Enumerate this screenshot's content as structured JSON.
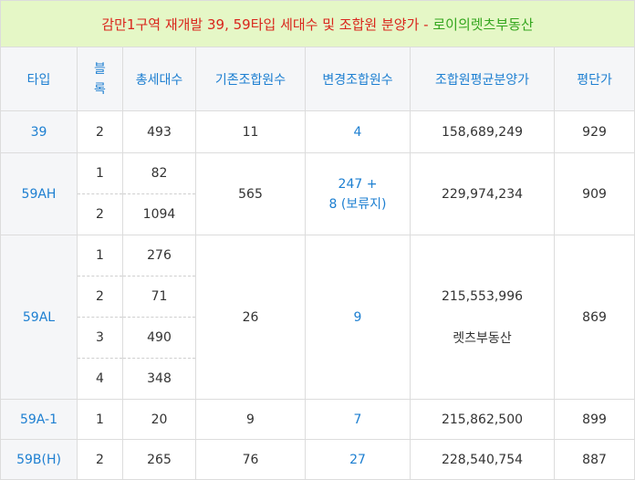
{
  "title": {
    "main": "감만1구역 재개발 39, 59타입 세대수 및 조합원 분양가",
    "separator": " - ",
    "source": "로이의렛츠부동산"
  },
  "columns": [
    "타입",
    "블록",
    "총세대수",
    "기존조합원수",
    "변경조합원수",
    "조합원평균분양가",
    "평단가"
  ],
  "column_block_lines": [
    "블",
    "록"
  ],
  "rows": {
    "t39": {
      "type": "39",
      "blocks": [
        {
          "block": "2",
          "households": "493"
        }
      ],
      "existing_members": "11",
      "changed_members": "4",
      "avg_price": "158,689,249",
      "unit_price": "929"
    },
    "t59ah": {
      "type": "59AH",
      "blocks": [
        {
          "block": "1",
          "households": "82"
        },
        {
          "block": "2",
          "households": "1094"
        }
      ],
      "existing_members": "565",
      "changed_members_line1": "247 +",
      "changed_members_line2": "8 (보류지)",
      "avg_price": "229,974,234",
      "unit_price": "909"
    },
    "t59al": {
      "type": "59AL",
      "blocks": [
        {
          "block": "1",
          "households": "276"
        },
        {
          "block": "2",
          "households": "71"
        },
        {
          "block": "3",
          "households": "490"
        },
        {
          "block": "4",
          "households": "348"
        }
      ],
      "existing_members": "26",
      "changed_members": "9",
      "avg_price": "215,553,996",
      "watermark": "렛츠부동산",
      "unit_price": "869"
    },
    "t59a1": {
      "type": "59A-1",
      "blocks": [
        {
          "block": "1",
          "households": "20"
        }
      ],
      "existing_members": "9",
      "changed_members": "7",
      "avg_price": "215,862,500",
      "unit_price": "899"
    },
    "t59bh": {
      "type": "59B(H)",
      "blocks": [
        {
          "block": "2",
          "households": "265"
        }
      ],
      "existing_members": "76",
      "changed_members": "27",
      "avg_price": "228,540,754",
      "unit_price": "887"
    }
  },
  "colors": {
    "title_bg": "#e5f7c6",
    "title_red": "#d9261c",
    "title_green": "#34a61e",
    "accent_blue": "#1d7fd1",
    "header_bg": "#f5f6f8",
    "border": "#dcdcdc"
  }
}
